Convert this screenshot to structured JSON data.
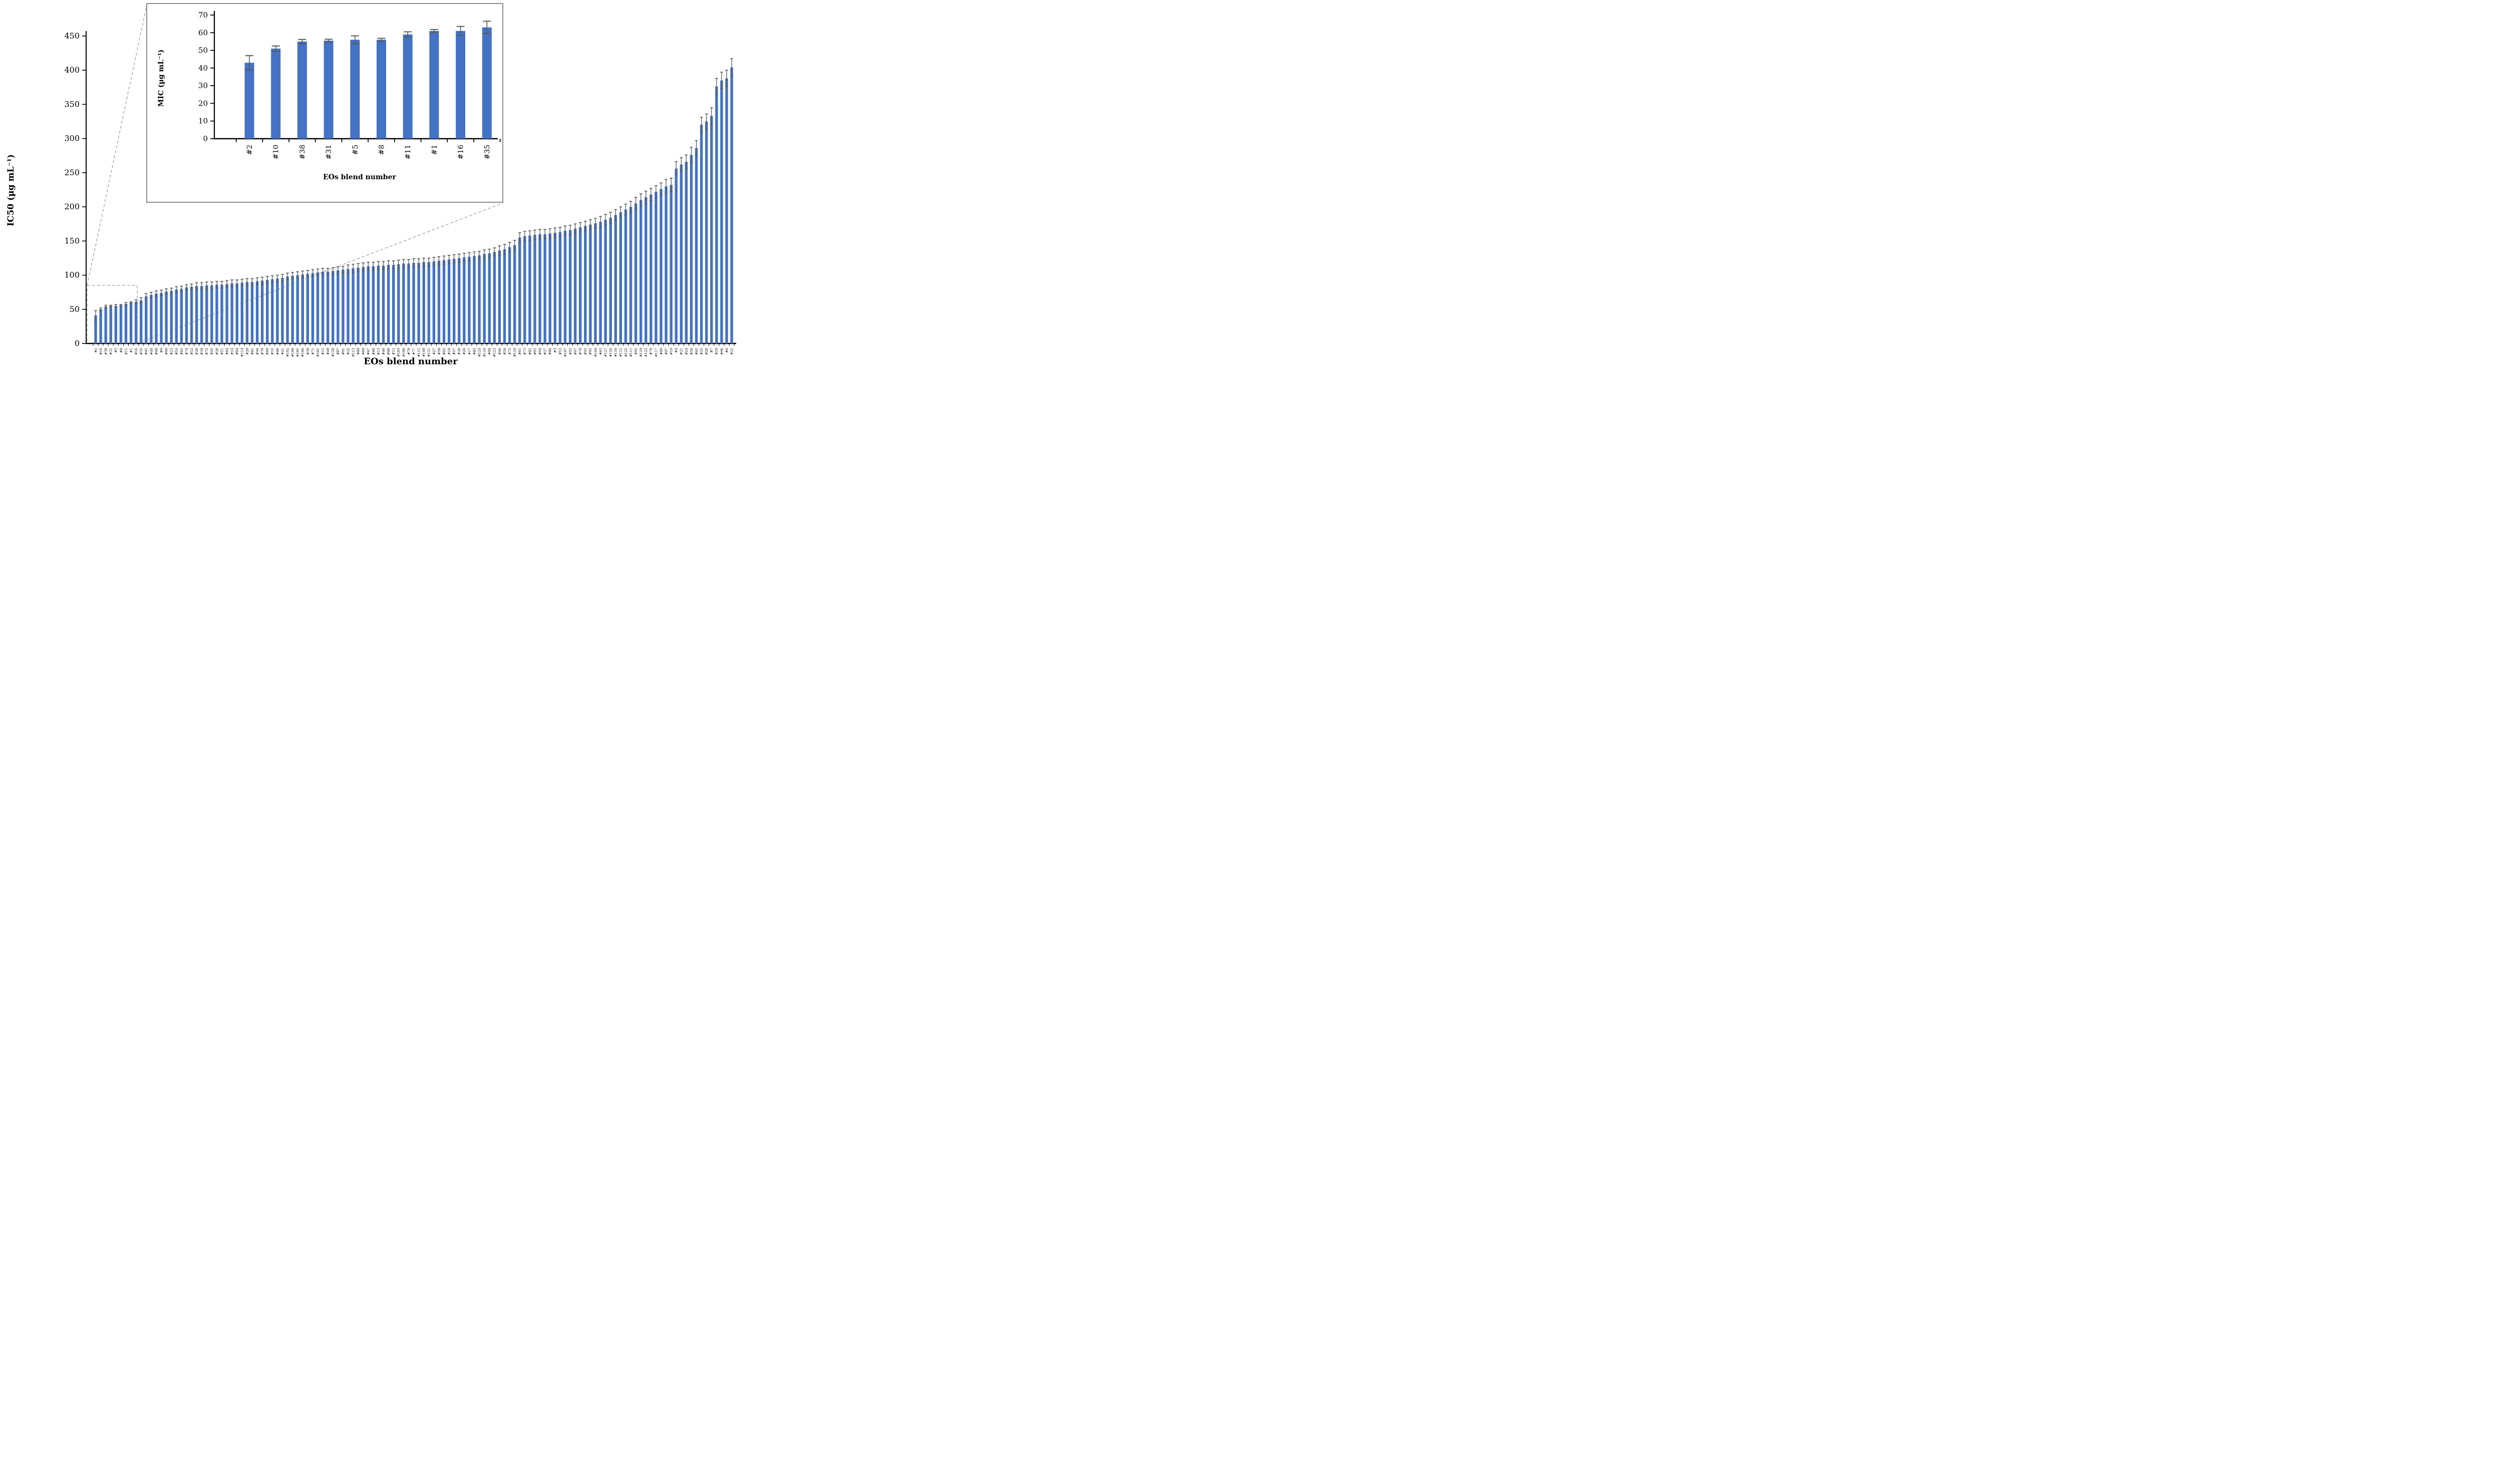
{
  "colors": {
    "bar": "#4472C4",
    "error": "#595959",
    "axis": "#000000",
    "callout": "#A6A6A6",
    "inset_border": "#8C8C8C",
    "background": "#FFFFFF"
  },
  "chart_data": [
    {
      "type": "bar",
      "title": "",
      "ylabel": "IC50 (µg mL⁻¹)",
      "xlabel": "EOs blend number",
      "ymin": 0,
      "ymax": 450,
      "ytick_step": 50,
      "ytick_labels": [
        "0",
        "50",
        "100",
        "150",
        "200",
        "250",
        "300",
        "350",
        "400",
        "450"
      ],
      "legend": "none",
      "grid": false,
      "categories": [
        "#2",
        "#10",
        "#38",
        "#31",
        "#5",
        "#8",
        "#11",
        "#1",
        "#16",
        "#35",
        "#45",
        "#48",
        "#68",
        "#9",
        "#99",
        "#23",
        "#54",
        "#65",
        "#74",
        "#52",
        "#20",
        "#34",
        "#72",
        "#42",
        "#30",
        "#51",
        "#84",
        "#14",
        "#64",
        "#114",
        "#29",
        "#81",
        "#44",
        "#70",
        "#69",
        "#33",
        "#90",
        "#41",
        "#102",
        "#100",
        "#105",
        "#106",
        "#39",
        "#71",
        "#101",
        "#15",
        "#49",
        "#120",
        "#87",
        "#91",
        "#32",
        "#113",
        "#80",
        "#60",
        "#67",
        "#66",
        "#13",
        "#40",
        "#88",
        "#12",
        "#103",
        "#109",
        "#78",
        "#77",
        "#115",
        "#108",
        "#121",
        "#27",
        "#50",
        "#83",
        "#18",
        "#57",
        "#36",
        "#26",
        "#17",
        "#85",
        "#124",
        "#110",
        "#98",
        "#123",
        "#46",
        "#58",
        "#75",
        "#118",
        "#61",
        "#73",
        "#82",
        "#93",
        "#94",
        "#37",
        "#86",
        "#3",
        "#53",
        "#107",
        "#55",
        "#47",
        "#76",
        "#43",
        "#95",
        "#104",
        "#63",
        "#127",
        "#126",
        "#116",
        "#112",
        "#125",
        "#111",
        "#92",
        "#119",
        "#122",
        "#79",
        "#117",
        "#89",
        "#97",
        "#19",
        "#4",
        "#21",
        "#24",
        "#56",
        "#62",
        "#25",
        "#28",
        "#7",
        "#59",
        "#96",
        "#6",
        "#22"
      ],
      "values": [
        41,
        50,
        54,
        55,
        55,
        56,
        58,
        60,
        61,
        63,
        69,
        71,
        73,
        74,
        76,
        77,
        79,
        80,
        82,
        83,
        84,
        84,
        85,
        85,
        86,
        86,
        87,
        88,
        88,
        89,
        90,
        90,
        91,
        92,
        93,
        94,
        95,
        96,
        98,
        99,
        100,
        101,
        102,
        103,
        104,
        105,
        105,
        106,
        107,
        108,
        109,
        110,
        111,
        112,
        113,
        113,
        114,
        114,
        115,
        115,
        116,
        117,
        117,
        118,
        118,
        119,
        119,
        120,
        121,
        122,
        123,
        124,
        125,
        126,
        127,
        128,
        129,
        131,
        132,
        134,
        136,
        138,
        141,
        144,
        155,
        157,
        158,
        159,
        160,
        160,
        161,
        162,
        163,
        165,
        166,
        168,
        170,
        172,
        174,
        176,
        178,
        181,
        184,
        188,
        192,
        196,
        200,
        205,
        210,
        214,
        218,
        222,
        226,
        230,
        232,
        256,
        262,
        266,
        276,
        286,
        320,
        325,
        333,
        376,
        385,
        388,
        404
      ],
      "errors": [
        7,
        2,
        2,
        1,
        2,
        1,
        2,
        1,
        3,
        4,
        4,
        4,
        4,
        4,
        4,
        4,
        4,
        4,
        4,
        4,
        5,
        5,
        5,
        5,
        5,
        5,
        5,
        5,
        5,
        5,
        5,
        5,
        5,
        5,
        5,
        5,
        5,
        5,
        5,
        5,
        5,
        5,
        5,
        5,
        5,
        5,
        5,
        5,
        5,
        5,
        6,
        6,
        6,
        6,
        6,
        6,
        6,
        6,
        6,
        6,
        6,
        6,
        6,
        6,
        6,
        6,
        6,
        6,
        6,
        6,
        6,
        6,
        6,
        6,
        6,
        6,
        6,
        6,
        6,
        6,
        7,
        7,
        7,
        7,
        7,
        7,
        7,
        7,
        7,
        7,
        7,
        7,
        7,
        7,
        7,
        7,
        7,
        7,
        7,
        7,
        8,
        8,
        8,
        8,
        8,
        8,
        8,
        9,
        9,
        9,
        9,
        9,
        9,
        10,
        10,
        10,
        10,
        10,
        11,
        11,
        11,
        11,
        12,
        12,
        12,
        12,
        13
      ]
    },
    {
      "type": "bar",
      "title": "",
      "ylabel": "MIC (µg mL⁻¹)",
      "xlabel": "EOs blend number",
      "ymin": 0,
      "ymax": 70,
      "ytick_step": 10,
      "ytick_labels": [
        "0",
        "10",
        "20",
        "30",
        "40",
        "50",
        "60",
        "70"
      ],
      "legend": "none",
      "grid": false,
      "categories": [
        "#2",
        "#10",
        "#38",
        "#31",
        "#5",
        "#8",
        "#11",
        "#1",
        "#16",
        "#35"
      ],
      "values": [
        43,
        51,
        55,
        55.5,
        56,
        56,
        59,
        61,
        61,
        63
      ],
      "errors": [
        4,
        1.5,
        1.2,
        0.8,
        2.2,
        0.8,
        1.5,
        0.8,
        2.5,
        3.5
      ]
    }
  ]
}
